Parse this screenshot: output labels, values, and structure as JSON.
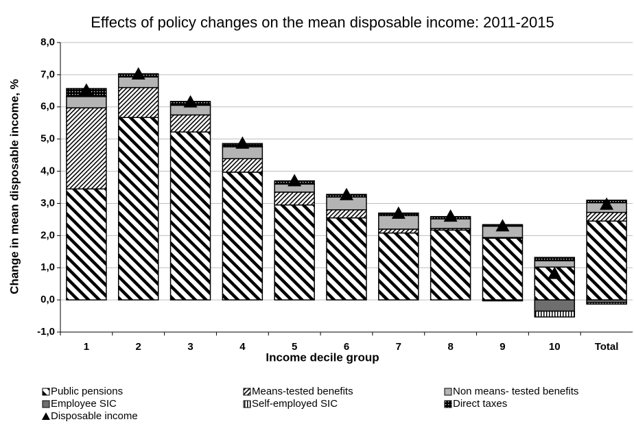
{
  "chart_data": {
    "type": "stacked-bar",
    "title": "Effects of policy changes on the mean disposable income: 2011-2015",
    "x_label": "Income decile group",
    "y_label": "Change in mean disposable income, %",
    "categories": [
      "1",
      "2",
      "3",
      "4",
      "5",
      "6",
      "7",
      "8",
      "9",
      "10",
      "Total"
    ],
    "ylim": [
      -1,
      8
    ],
    "yticks": [
      {
        "value": -1,
        "label": "-1,0"
      },
      {
        "value": 0,
        "label": "0,0"
      },
      {
        "value": 1,
        "label": "1,0"
      },
      {
        "value": 2,
        "label": "2,0"
      },
      {
        "value": 3,
        "label": "3,0"
      },
      {
        "value": 4,
        "label": "4,0"
      },
      {
        "value": 5,
        "label": "5,0"
      },
      {
        "value": 6,
        "label": "6,0"
      },
      {
        "value": 7,
        "label": "7,0"
      },
      {
        "value": 8,
        "label": "8,0"
      }
    ],
    "grid": true,
    "series": [
      {
        "name": "Public pensions",
        "color": "#000000",
        "pattern": "wide-diagonal",
        "values": [
          3.45,
          5.67,
          5.22,
          3.97,
          2.95,
          2.55,
          2.08,
          2.17,
          1.92,
          1.02,
          2.45
        ]
      },
      {
        "name": "Means-tested benefits",
        "color": "#000000",
        "pattern": "dense-diagonal",
        "values": [
          2.52,
          0.93,
          0.53,
          0.42,
          0.4,
          0.25,
          0.12,
          0.05,
          0.02,
          0,
          0.27
        ]
      },
      {
        "name": "Non means- tested benefits",
        "color": "#b4b4b4",
        "pattern": "solid",
        "values": [
          0.35,
          0.33,
          0.3,
          0.37,
          0.25,
          0.4,
          0.42,
          0.3,
          0.35,
          0.2,
          0.3
        ]
      },
      {
        "name": "Employee SIC",
        "color": "#6e6e6e",
        "pattern": "solid",
        "values": [
          0,
          0,
          0,
          0,
          0,
          0,
          0,
          0,
          -0.03,
          -0.35,
          -0.08
        ]
      },
      {
        "name": "Self-employed SIC",
        "color": "#000000",
        "pattern": "vertical",
        "values": [
          0,
          0,
          0,
          0,
          0,
          0,
          0,
          0,
          0,
          -0.18,
          -0.05
        ]
      },
      {
        "name": "Direct taxes",
        "color": "#000000",
        "pattern": "dots",
        "values": [
          0.25,
          0.1,
          0.12,
          0.1,
          0.1,
          0.08,
          0.08,
          0.07,
          0.05,
          0.1,
          0.08
        ]
      }
    ],
    "markers": {
      "name": "Disposable income",
      "color": "#000000",
      "marker": "triangle",
      "values": [
        6.5,
        7.0,
        6.13,
        4.85,
        3.68,
        3.25,
        2.67,
        2.58,
        2.28,
        0.8,
        2.95
      ]
    }
  }
}
